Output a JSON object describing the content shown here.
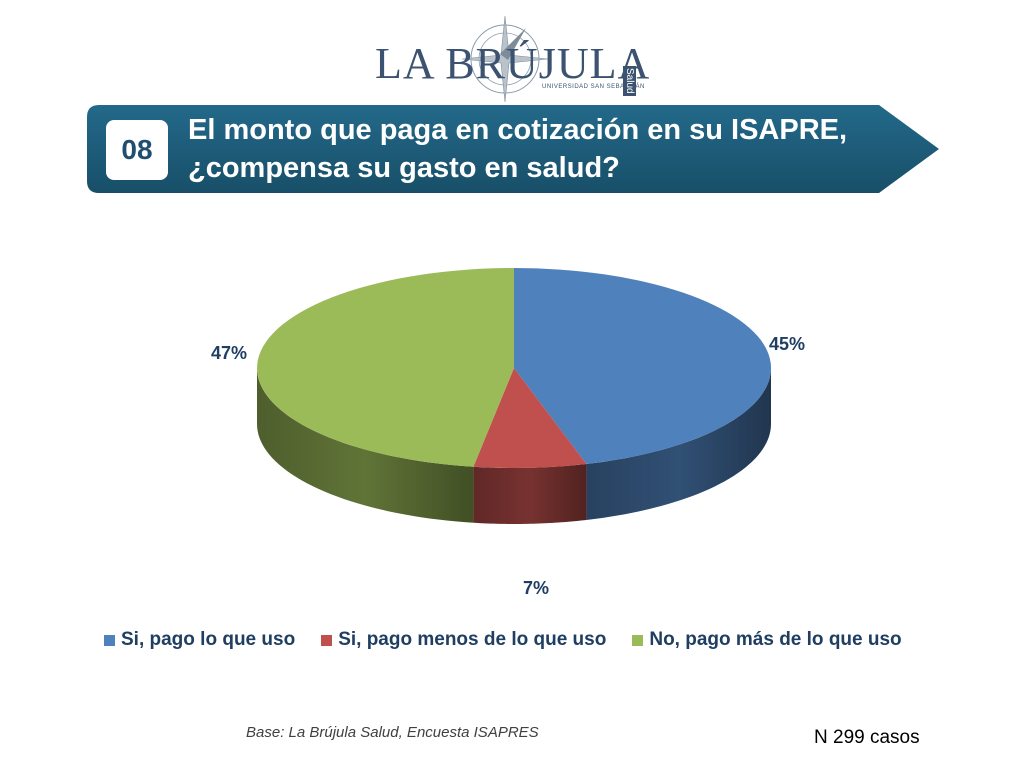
{
  "logo": {
    "name": "LA BRÚJULA",
    "subtitle": "UNIVERSIDAD SAN SEBASTIÁN",
    "vertical_tag": "Salud"
  },
  "question": {
    "number": "08",
    "title_line1": "El monto que paga en cotización en su ISAPRE,",
    "title_line2": "¿compensa su gasto en salud?"
  },
  "chart_data": {
    "type": "pie",
    "categories": [
      "Si, pago lo que uso",
      "Si, pago menos de lo que uso",
      "No, pago más de lo que uso"
    ],
    "values": [
      45,
      7,
      47
    ],
    "labels": [
      "45%",
      "7%",
      "47%"
    ],
    "colors": [
      "#4f81bd",
      "#c0504d",
      "#9bbb59"
    ],
    "legend_position": "bottom",
    "style": "3d"
  },
  "footer": {
    "source": "Base: La Brújula Salud, Encuesta ISAPRES",
    "sample": "N 299 casos"
  },
  "colors": {
    "banner": "#1f5d7a",
    "title_text": "#ffffff",
    "logo": "#3b5370"
  }
}
